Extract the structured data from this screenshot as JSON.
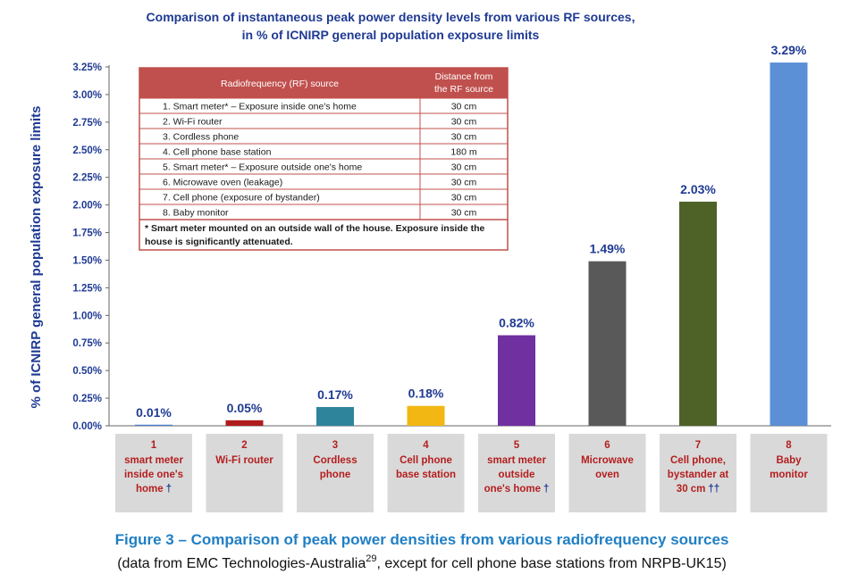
{
  "chart_data": {
    "type": "bar",
    "title_lines": [
      "Comparison of instantaneous peak power density levels from various RF sources,",
      "in % of ICNIRP general population exposure limits"
    ],
    "ylabel": "% of ICNIRP general population  exposure limits",
    "ylim": [
      0,
      3.25
    ],
    "yticks": [
      "0.00%",
      "0.25%",
      "0.50%",
      "0.75%",
      "1.00%",
      "1.25%",
      "1.50%",
      "1.75%",
      "2.00%",
      "2.25%",
      "2.50%",
      "2.75%",
      "3.00%",
      "3.25%"
    ],
    "values": [
      0.01,
      0.05,
      0.17,
      0.18,
      0.82,
      1.49,
      2.03,
      3.29
    ],
    "value_labels": [
      "0.01%",
      "0.05%",
      "0.17%",
      "0.18%",
      "0.82%",
      "1.49%",
      "2.03%",
      "3.29%"
    ],
    "colors": [
      "#4a7fd0",
      "#b01c1c",
      "#2e849b",
      "#f2b712",
      "#7030a0",
      "#595959",
      "#4e6228",
      "#5b8fd6"
    ],
    "categories": [
      {
        "num": "1",
        "lines": [
          "smart meter",
          "inside one's",
          "home"
        ],
        "mark": "†"
      },
      {
        "num": "2",
        "lines": [
          "Wi-Fi router"
        ],
        "mark": ""
      },
      {
        "num": "3",
        "lines": [
          "Cordless",
          "phone"
        ],
        "mark": ""
      },
      {
        "num": "4",
        "lines": [
          "Cell phone",
          "base station"
        ],
        "mark": ""
      },
      {
        "num": "5",
        "lines": [
          "smart meter",
          "outside",
          "one's home"
        ],
        "mark": "†"
      },
      {
        "num": "6",
        "lines": [
          "Microwave",
          "oven"
        ],
        "mark": ""
      },
      {
        "num": "7",
        "lines": [
          "Cell phone,",
          "bystander at",
          "30 cm"
        ],
        "mark": "††"
      },
      {
        "num": "8",
        "lines": [
          "Baby",
          "monitor"
        ],
        "mark": ""
      }
    ],
    "legend_table": {
      "header_source": "Radiofrequency (RF) source",
      "header_distance": [
        "Distance from",
        "the RF source"
      ],
      "rows": [
        {
          "source": "1.    Smart meter* – Exposure inside one's home",
          "distance": "30 cm"
        },
        {
          "source": "2.    Wi-Fi router",
          "distance": "30 cm"
        },
        {
          "source": "3.    Cordless phone",
          "distance": "30 cm"
        },
        {
          "source": "4.    Cell phone base station",
          "distance": "180 m"
        },
        {
          "source": "5.    Smart meter* – Exposure outside one's home",
          "distance": "30 cm"
        },
        {
          "source": "6.    Microwave oven (leakage)",
          "distance": "30 cm"
        },
        {
          "source": "7.    Cell phone (exposure of bystander)",
          "distance": "30 cm"
        },
        {
          "source": "8.    Baby monitor",
          "distance": "30 cm"
        }
      ],
      "note": [
        "* Smart meter mounted on an outside wall of the house. Exposure inside the",
        "house is significantly attenuated."
      ]
    }
  },
  "caption": {
    "title": "Figure 3 – Comparison of peak power densities from various radiofrequency sources",
    "sub_before": "(data from EMC Technologies-Australia",
    "sub_sup": "29",
    "sub_after": ", except for cell phone base stations from NRPB-UK15)"
  },
  "colors": {
    "title_blue": "#1f3a93",
    "table_header_red": "#c0504d",
    "table_border": "#c0504d",
    "category_box": "#d9d9d9",
    "category_text": "#b41e1e",
    "caption_blue": "#1f7fc4"
  }
}
